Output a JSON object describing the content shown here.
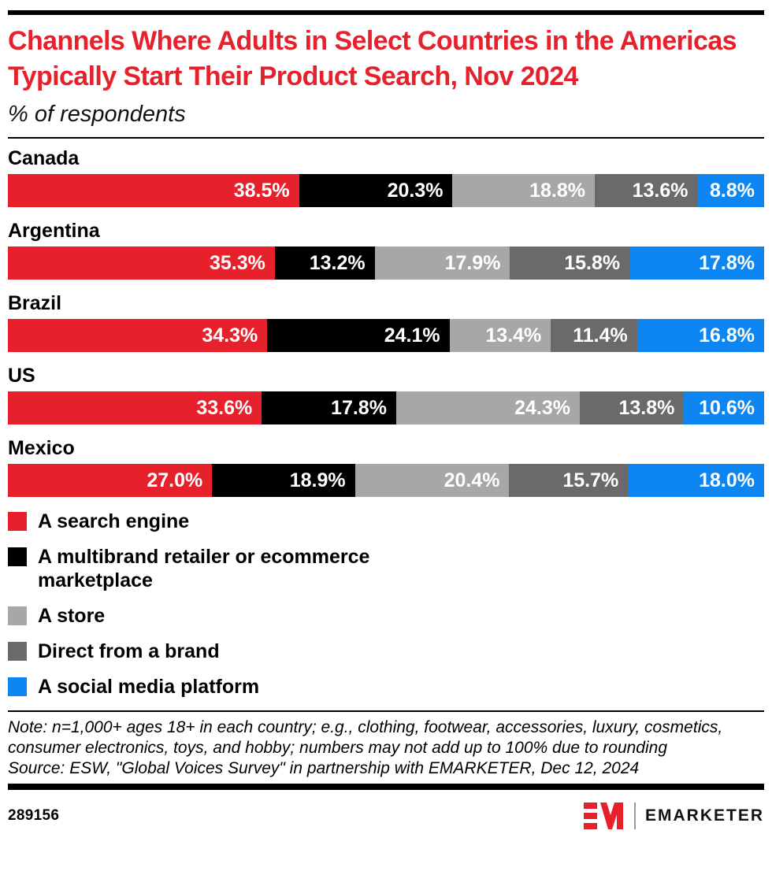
{
  "header": {
    "title": "Channels Where Adults in Select Countries in the Americas Typically Start Their Product Search, Nov 2024",
    "subtitle": "% of respondents"
  },
  "chart_data": {
    "type": "bar",
    "variant": "horizontal-stacked-100pct",
    "unit": "% of respondents",
    "categories": [
      "Canada",
      "Argentina",
      "Brazil",
      "US",
      "Mexico"
    ],
    "series": [
      {
        "name": "A search engine",
        "color": "#e6212c",
        "values": [
          38.5,
          35.3,
          34.3,
          33.6,
          27.0
        ]
      },
      {
        "name": "A multibrand retailer or ecommerce marketplace",
        "color": "#000000",
        "values": [
          20.3,
          13.2,
          24.1,
          17.8,
          18.9
        ]
      },
      {
        "name": "A store",
        "color": "#a7a7a7",
        "values": [
          18.8,
          17.9,
          13.4,
          24.3,
          20.4
        ]
      },
      {
        "name": "Direct from a brand",
        "color": "#6a6a6a",
        "values": [
          13.6,
          15.8,
          11.4,
          13.8,
          15.7
        ]
      },
      {
        "name": "A social media platform",
        "color": "#0d86f2",
        "values": [
          8.8,
          17.8,
          16.8,
          10.6,
          18.0
        ]
      }
    ],
    "value_label_format": "one-decimal-percent",
    "legend_position": "bottom-left",
    "grid": false
  },
  "footnote": {
    "note": "Note: n=1,000+ ages 18+ in each country; e.g., clothing, footwear, accessories, luxury, cosmetics, consumer electronics, toys, and hobby; numbers may not add up to 100% due to rounding",
    "source": "Source: ESW, \"Global Voices Survey\" in partnership with EMARKETER, Dec 12, 2024"
  },
  "footer": {
    "chart_id": "289156",
    "brand_name": "EMARKETER",
    "brand_red": "#e6212c"
  }
}
